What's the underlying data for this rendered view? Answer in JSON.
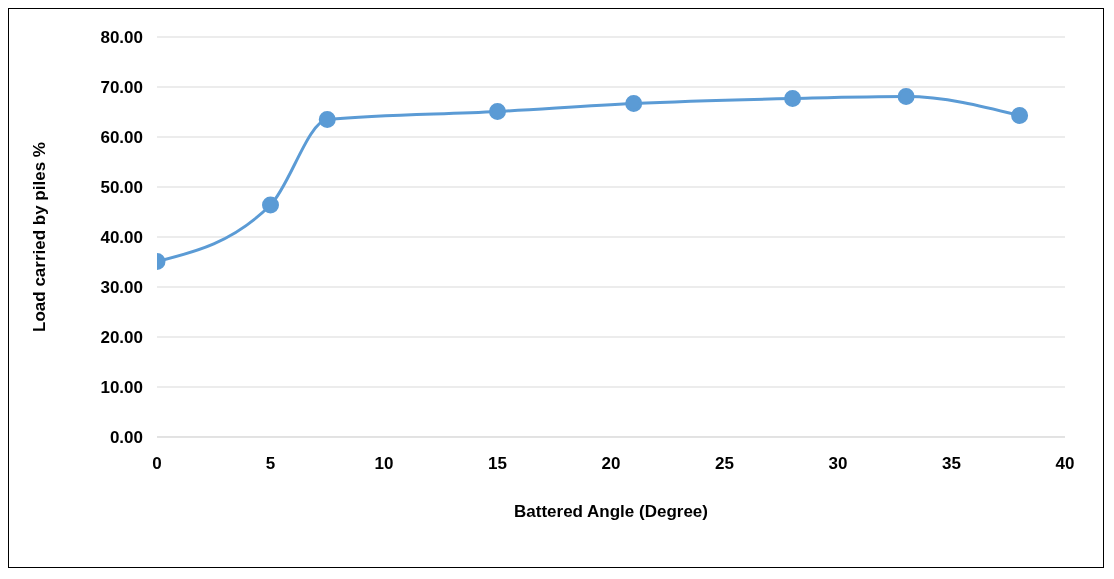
{
  "chart_data": {
    "type": "line",
    "xlabel": "Battered Angle (Degree)",
    "ylabel": "Load carried by piles %",
    "x": [
      0,
      5,
      7.5,
      15,
      21,
      28,
      33,
      38
    ],
    "series": [
      {
        "color": "#5b9bd5",
        "values": [
          35.1,
          46.4,
          63.5,
          65.1,
          66.7,
          67.7,
          68.1,
          64.3
        ]
      }
    ],
    "xlim": [
      0,
      40
    ],
    "xticks": [
      0,
      5,
      10,
      15,
      20,
      25,
      30,
      35,
      40
    ],
    "ylim": [
      0,
      80
    ],
    "yticks": [
      {
        "value": 0,
        "label": "0.00"
      },
      {
        "value": 10,
        "label": "10.00"
      },
      {
        "value": 20,
        "label": "20.00"
      },
      {
        "value": 30,
        "label": "30.00"
      },
      {
        "value": 40,
        "label": "40.00"
      },
      {
        "value": 50,
        "label": "50.00"
      },
      {
        "value": 60,
        "label": "60.00"
      },
      {
        "value": 70,
        "label": "70.00"
      },
      {
        "value": 80,
        "label": "80.00"
      }
    ],
    "grid": "y",
    "marker": "circle",
    "line_style": "solid"
  }
}
